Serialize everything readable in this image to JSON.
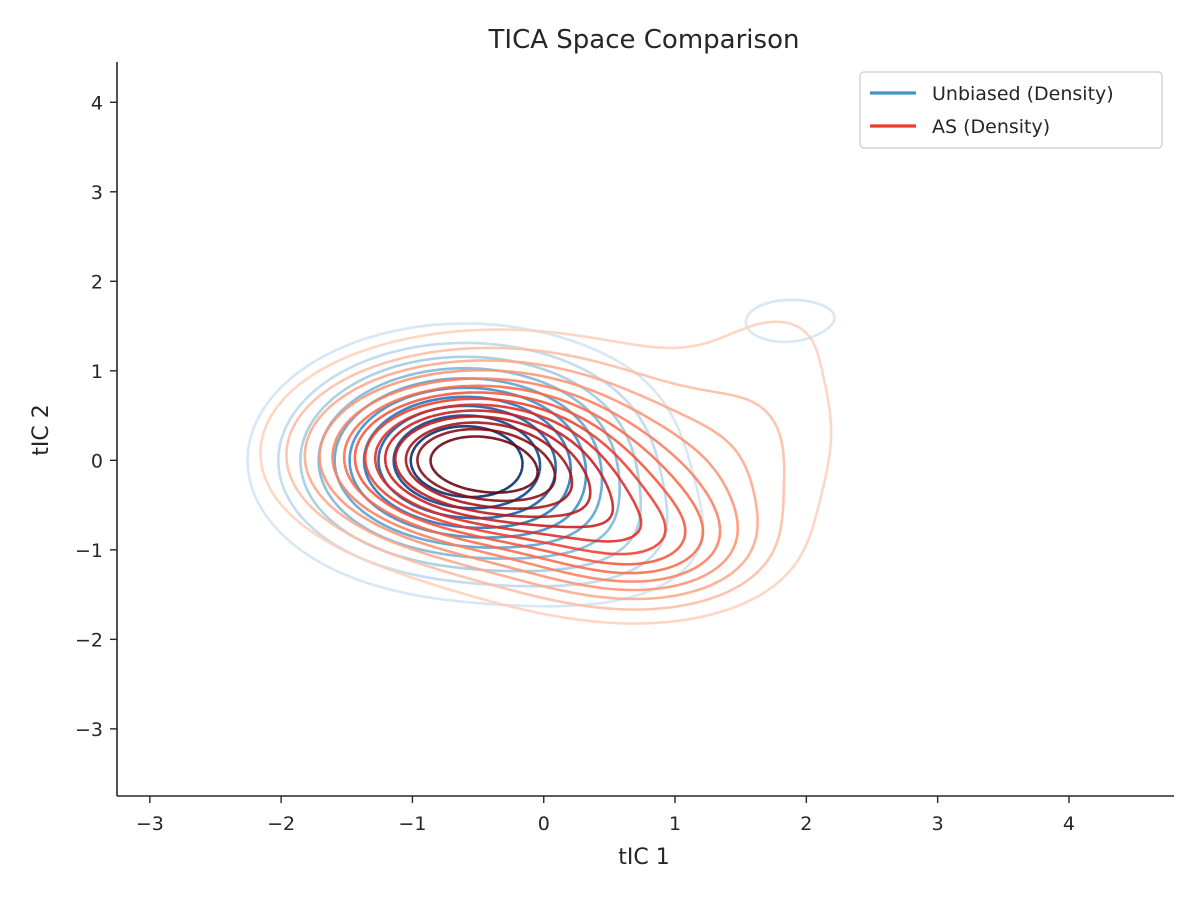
{
  "chart_data": {
    "type": "contour",
    "title": "TICA Space Comparison",
    "xlabel": "tIC 1",
    "ylabel": "tIC 2",
    "xlim": [
      -3.25,
      4.8
    ],
    "ylim": [
      -3.75,
      4.45
    ],
    "xticks": [
      -3,
      -2,
      -1,
      0,
      1,
      2,
      3,
      4
    ],
    "yticks": [
      -3,
      -2,
      -1,
      0,
      1,
      2,
      3,
      4
    ],
    "xtick_labels": [
      "−3",
      "−2",
      "−1",
      "0",
      "1",
      "2",
      "3",
      "4"
    ],
    "ytick_labels": [
      "−3",
      "−2",
      "−1",
      "0",
      "1",
      "2",
      "3",
      "4"
    ],
    "grid": false,
    "legend": {
      "placement": "top-right",
      "entries": [
        {
          "label": "Unbiased (Density)",
          "color": "#4292c6"
        },
        {
          "label": "AS (Density)",
          "color": "#ef3b2c"
        }
      ]
    },
    "series": [
      {
        "name": "Unbiased (Density)",
        "colormap": "Blues",
        "levels": 10,
        "kernels": [
          {
            "mx": -0.6,
            "my": 0.0,
            "sx": 0.78,
            "sy": 0.72,
            "w": 1.0
          },
          {
            "mx": 0.45,
            "my": -0.95,
            "sx": 0.6,
            "sy": 0.5,
            "w": 0.16
          },
          {
            "mx": 1.85,
            "my": 1.55,
            "sx": 0.55,
            "sy": 0.42,
            "w": 0.12
          },
          {
            "mx": 2.0,
            "my": 1.62,
            "sx": 0.18,
            "sy": 0.1,
            "w": 0.02
          }
        ]
      },
      {
        "name": "AS (Density)",
        "colormap": "Reds",
        "levels": 14,
        "kernels": [
          {
            "mx": -0.65,
            "my": 0.0,
            "sx": 0.68,
            "sy": 0.55,
            "w": 1.0
          },
          {
            "mx": 0.3,
            "my": -0.55,
            "sx": 0.75,
            "sy": 0.6,
            "w": 0.55
          },
          {
            "mx": 0.85,
            "my": -1.05,
            "sx": 0.55,
            "sy": 0.42,
            "w": 0.3
          },
          {
            "mx": -0.15,
            "my": 0.55,
            "sx": 1.0,
            "sy": 0.65,
            "w": 0.22
          },
          {
            "mx": 1.8,
            "my": 0.6,
            "sx": 0.5,
            "sy": 0.8,
            "w": 0.09
          },
          {
            "mx": 1.4,
            "my": -0.2,
            "sx": 0.6,
            "sy": 0.8,
            "w": 0.07
          },
          {
            "mx": 1.9,
            "my": 1.6,
            "sx": 0.55,
            "sy": 0.45,
            "w": 0.05
          }
        ]
      }
    ]
  }
}
